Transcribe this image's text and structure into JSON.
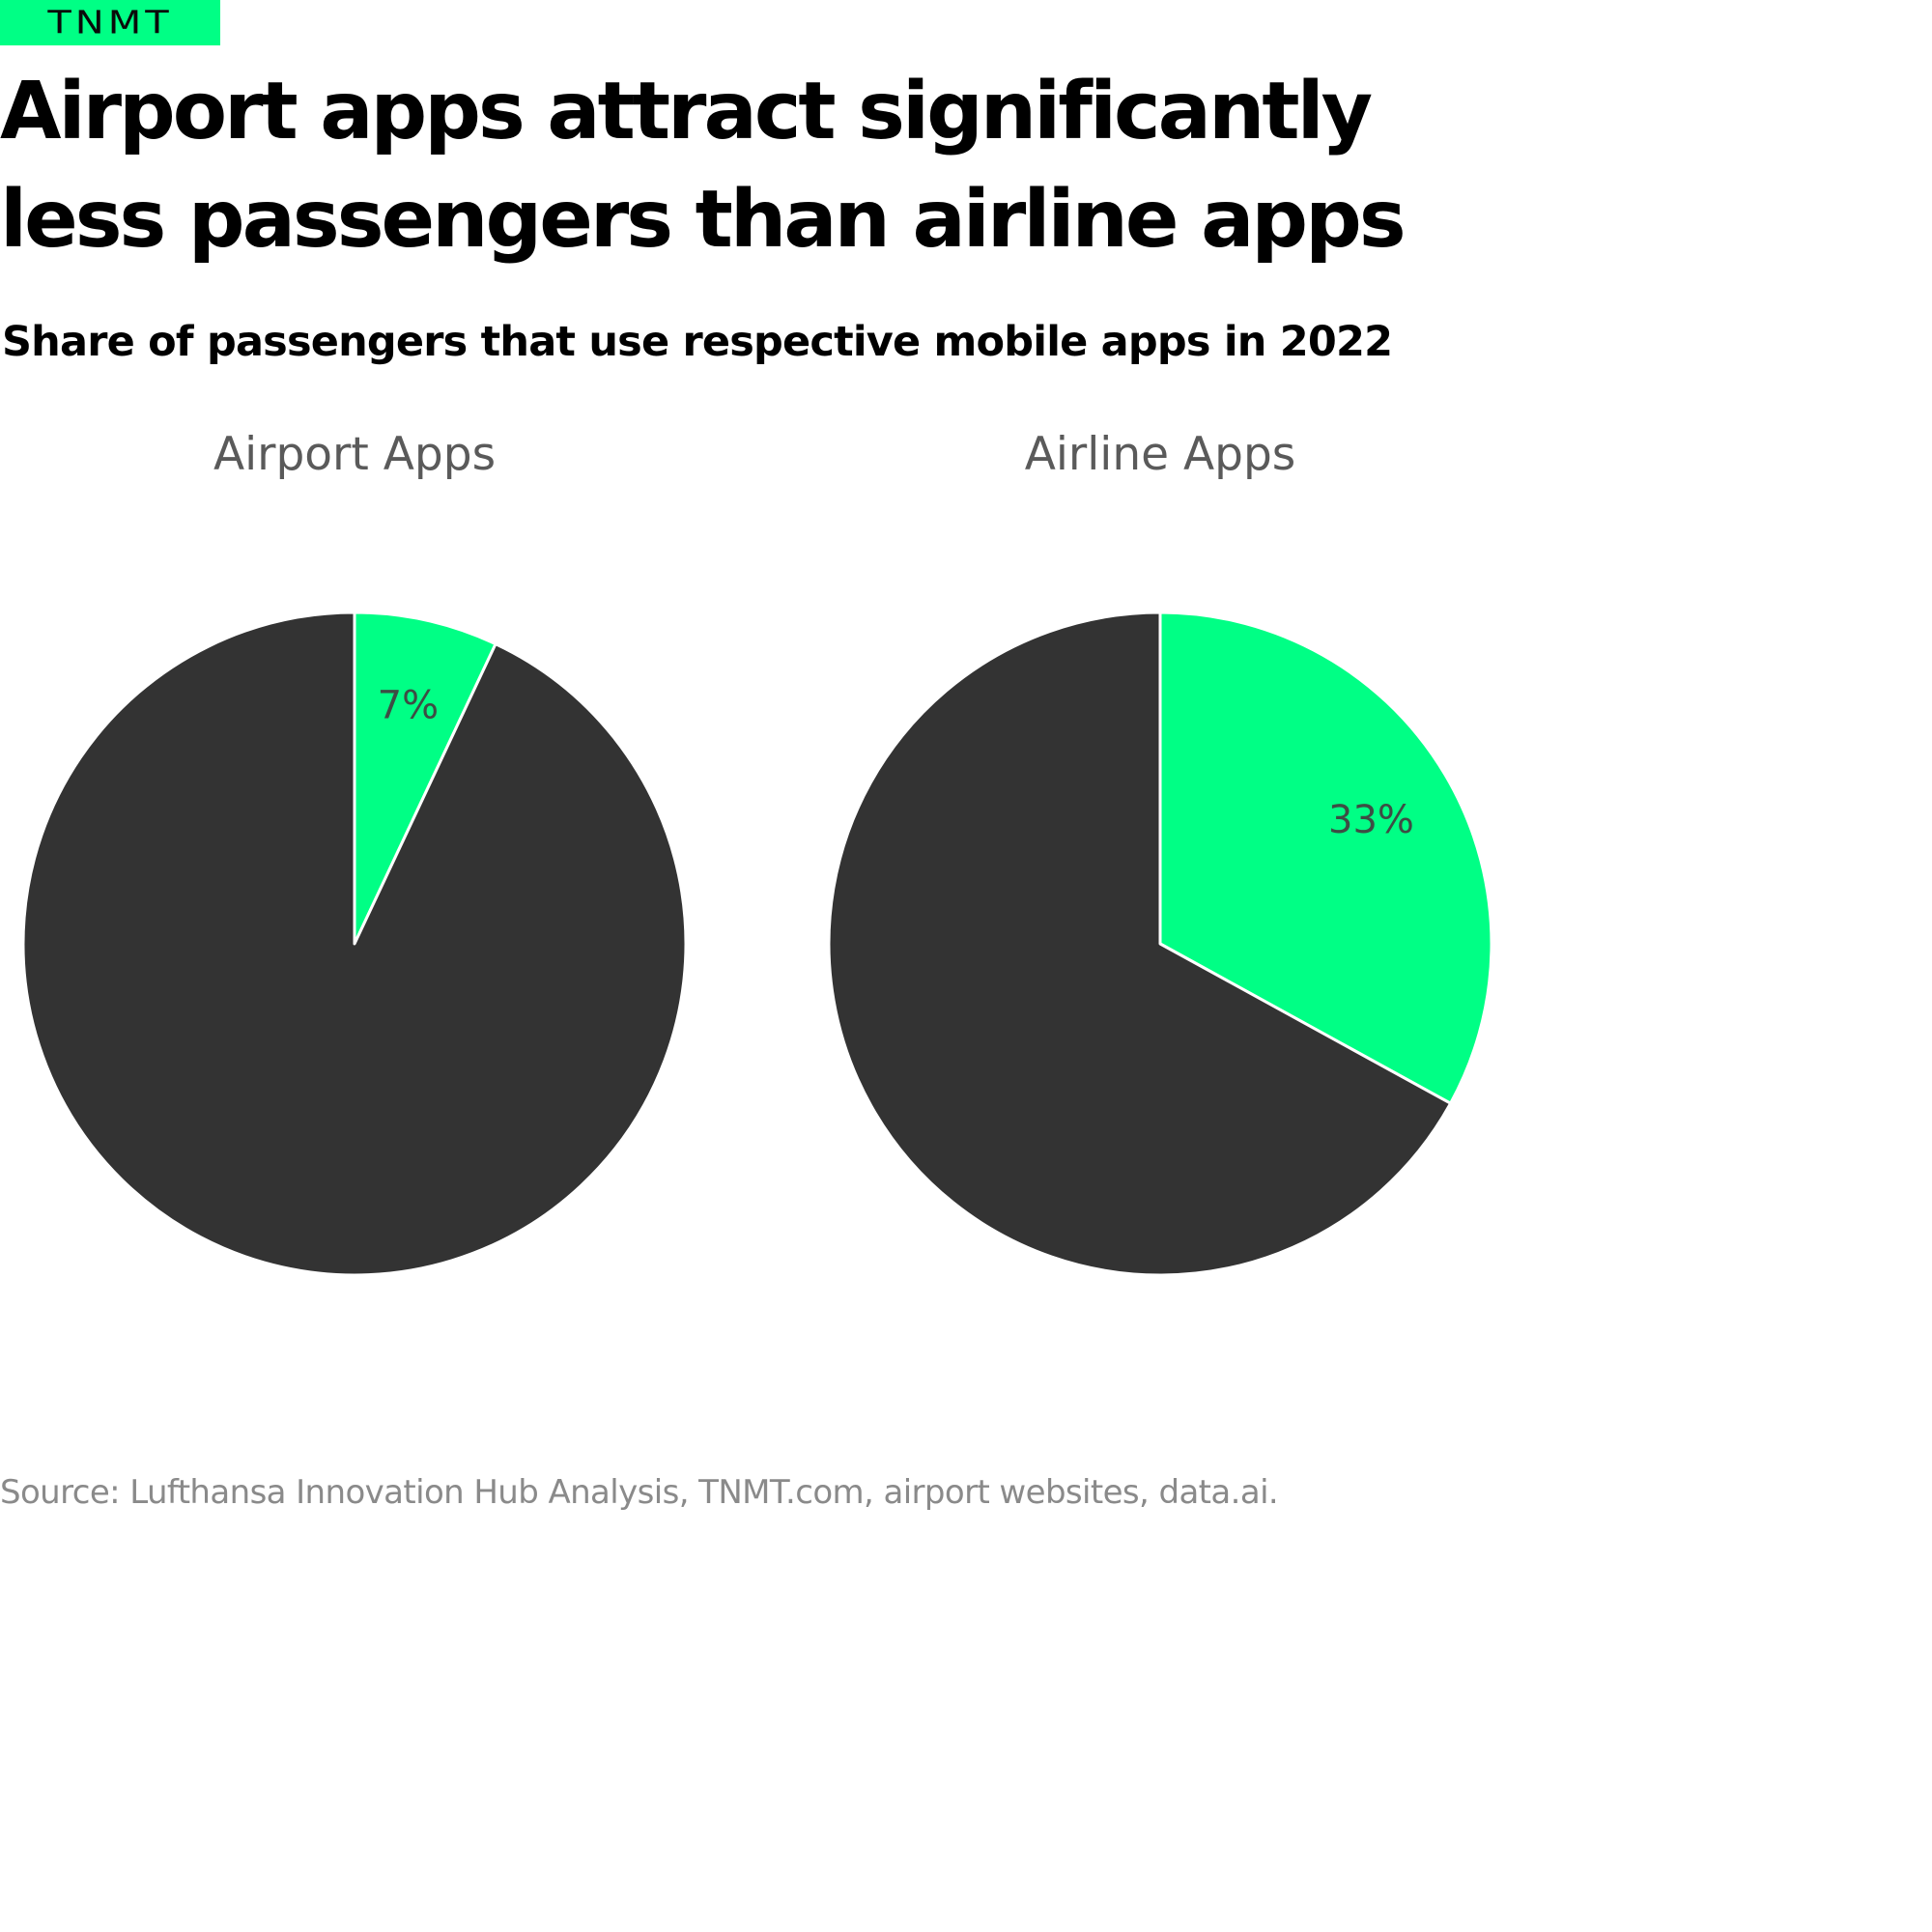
{
  "brand": {
    "logo_text": "TNMT"
  },
  "title": "Airport apps attract significantly less passengers than airline apps",
  "subtitle": "Share of passengers that use respective mobile apps in 2022",
  "source": "Source: Lufthansa Innovation Hub Analysis, TNMT.com, airport websites, data.ai.",
  "colors": {
    "highlight": "#00ff85",
    "remainder": "#333333",
    "title_text": "#5a5a5a",
    "label_text": "#3d4d44"
  },
  "chart_data": [
    {
      "type": "pie",
      "title": "Airport Apps",
      "slices": [
        {
          "value": 7,
          "label": "7%",
          "color": "#00ff85"
        },
        {
          "value": 93,
          "label": "",
          "color": "#333333"
        }
      ]
    },
    {
      "type": "pie",
      "title": "Airline Apps",
      "slices": [
        {
          "value": 33,
          "label": "33%",
          "color": "#00ff85"
        },
        {
          "value": 67,
          "label": "",
          "color": "#333333"
        }
      ]
    }
  ]
}
